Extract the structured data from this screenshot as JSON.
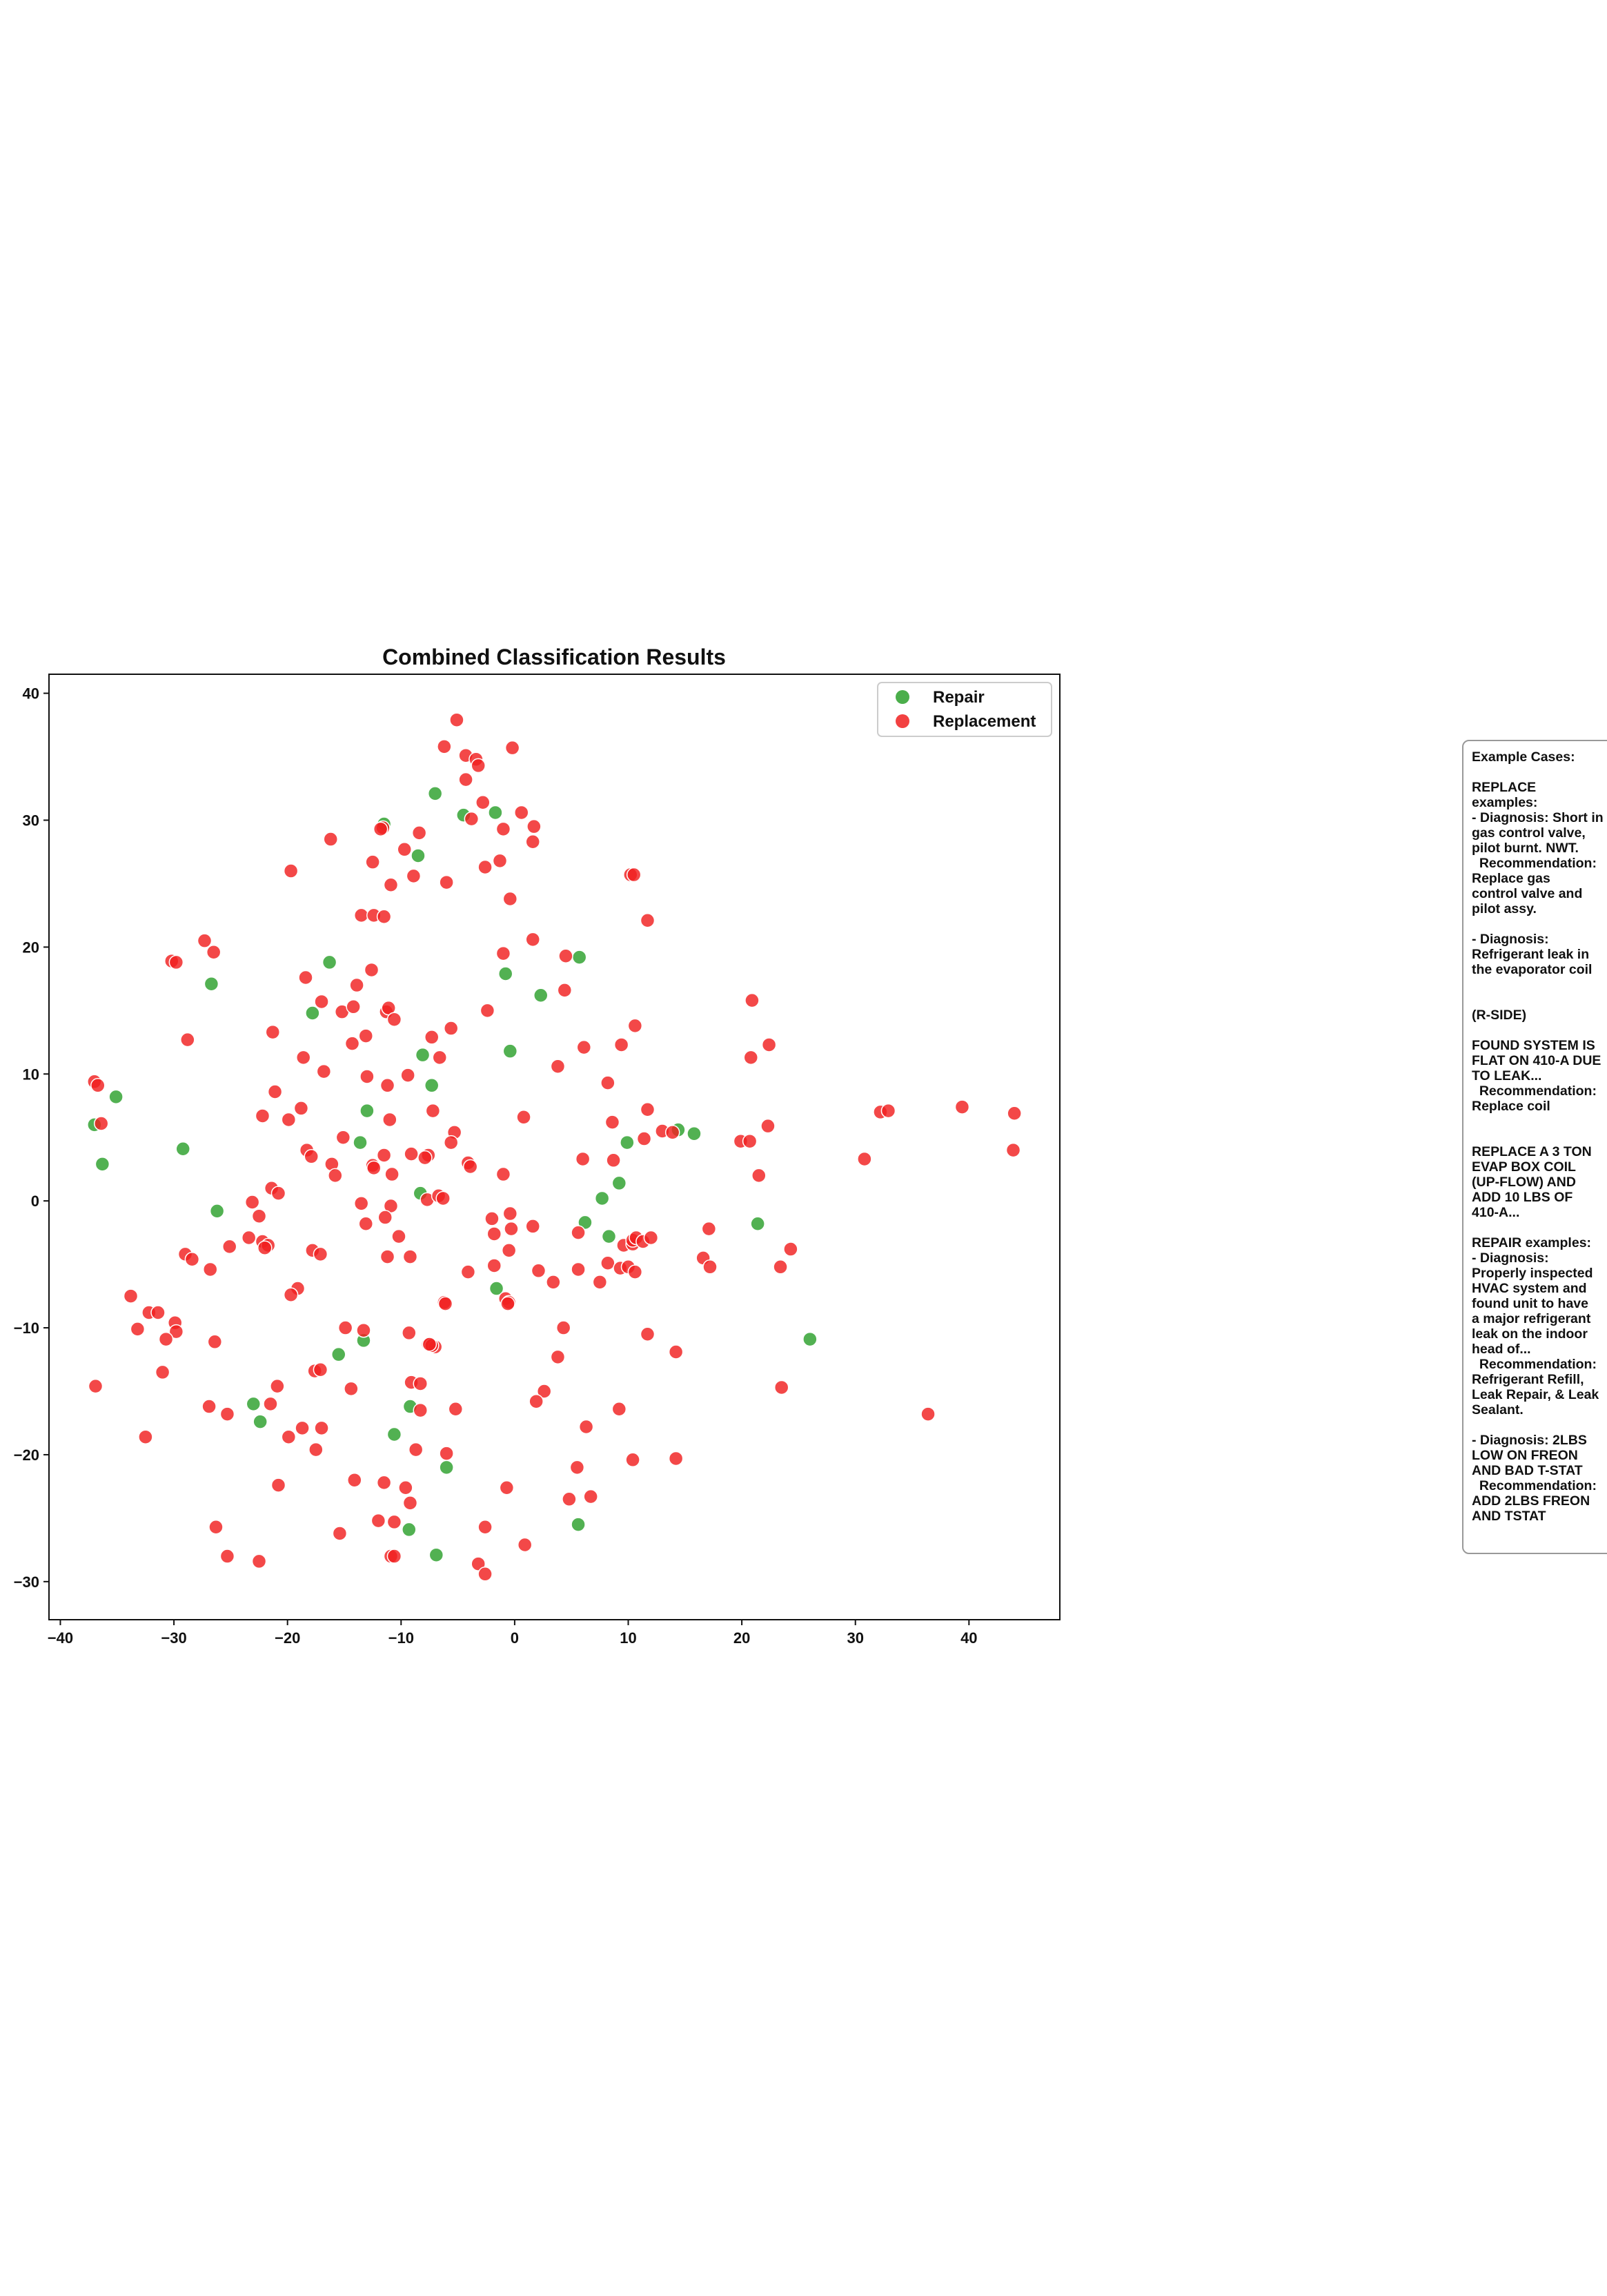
{
  "chart_data": {
    "type": "scatter",
    "title": "Combined Classification Results",
    "xlabel": "",
    "ylabel": "",
    "xlim": [
      -41,
      48
    ],
    "ylim": [
      -33,
      41.5
    ],
    "xticks": [
      -40,
      -30,
      -20,
      -10,
      0,
      10,
      20,
      30,
      40
    ],
    "yticks": [
      -30,
      -20,
      -10,
      0,
      10,
      20,
      30,
      40
    ],
    "grid": false,
    "legend_position": "top-right",
    "series": [
      {
        "name": "Repair",
        "color": "#2ca02c",
        "points": [
          [
            -11.5,
            29.7
          ],
          [
            -7,
            32.1
          ],
          [
            -4.5,
            30.4
          ],
          [
            -1.7,
            30.6
          ],
          [
            -8.5,
            27.2
          ],
          [
            -16.3,
            18.8
          ],
          [
            -26.7,
            17.1
          ],
          [
            -17.8,
            14.8
          ],
          [
            -0.8,
            17.9
          ],
          [
            2.3,
            16.2
          ],
          [
            5.7,
            19.2
          ],
          [
            -8.1,
            11.5
          ],
          [
            -0.4,
            11.8
          ],
          [
            -7.3,
            9.1
          ],
          [
            -13,
            7.1
          ],
          [
            -35.1,
            8.2
          ],
          [
            -37,
            6
          ],
          [
            -36.3,
            2.9
          ],
          [
            -29.2,
            4.1
          ],
          [
            -13.6,
            4.6
          ],
          [
            9.9,
            4.6
          ],
          [
            14.4,
            5.6
          ],
          [
            15.8,
            5.3
          ],
          [
            -8.3,
            0.6
          ],
          [
            7.7,
            0.2
          ],
          [
            9.2,
            1.4
          ],
          [
            -26.2,
            -0.8
          ],
          [
            6.2,
            -1.7
          ],
          [
            8.3,
            -2.8
          ],
          [
            21.4,
            -1.8
          ],
          [
            -1.6,
            -6.9
          ],
          [
            26,
            -10.9
          ],
          [
            -13.3,
            -11
          ],
          [
            -15.5,
            -12.1
          ],
          [
            -23,
            -16
          ],
          [
            -22.4,
            -17.4
          ],
          [
            -9.2,
            -16.2
          ],
          [
            -10.6,
            -18.4
          ],
          [
            -6,
            -21
          ],
          [
            -9.3,
            -25.9
          ],
          [
            5.6,
            -25.5
          ],
          [
            -6.9,
            -27.9
          ]
        ]
      },
      {
        "name": "Replacement",
        "color": "#f02020",
        "points": [
          [
            -5.1,
            37.9
          ],
          [
            -6.2,
            35.8
          ],
          [
            -4.3,
            35.1
          ],
          [
            -3.4,
            34.8
          ],
          [
            -3.2,
            34.3
          ],
          [
            -0.2,
            35.7
          ],
          [
            -4.3,
            33.2
          ],
          [
            -2.8,
            31.4
          ],
          [
            0.6,
            30.6
          ],
          [
            -3.8,
            30.1
          ],
          [
            -11.6,
            29.4
          ],
          [
            -11.8,
            29.3
          ],
          [
            -8.4,
            29
          ],
          [
            -1,
            29.3
          ],
          [
            1.7,
            29.5
          ],
          [
            -16.2,
            28.5
          ],
          [
            -9.7,
            27.7
          ],
          [
            1.6,
            28.3
          ],
          [
            -12.5,
            26.7
          ],
          [
            -2.6,
            26.3
          ],
          [
            -1.3,
            26.8
          ],
          [
            -19.7,
            26
          ],
          [
            -8.9,
            25.6
          ],
          [
            -10.9,
            24.9
          ],
          [
            -6,
            25.1
          ],
          [
            10.2,
            25.7
          ],
          [
            10.5,
            25.7
          ],
          [
            -0.4,
            23.8
          ],
          [
            -13.5,
            22.5
          ],
          [
            -12.4,
            22.5
          ],
          [
            -11.5,
            22.4
          ],
          [
            11.7,
            22.1
          ],
          [
            -27.3,
            20.5
          ],
          [
            1.6,
            20.6
          ],
          [
            -26.5,
            19.6
          ],
          [
            -30.2,
            18.9
          ],
          [
            -29.8,
            18.8
          ],
          [
            -1,
            19.5
          ],
          [
            4.5,
            19.3
          ],
          [
            -18.4,
            17.6
          ],
          [
            -13.9,
            17
          ],
          [
            -12.6,
            18.2
          ],
          [
            4.4,
            16.6
          ],
          [
            -17,
            15.7
          ],
          [
            -15.2,
            14.9
          ],
          [
            -14.2,
            15.3
          ],
          [
            -11.3,
            14.9
          ],
          [
            -11.1,
            15.2
          ],
          [
            -10.6,
            14.3
          ],
          [
            -2.4,
            15
          ],
          [
            20.9,
            15.8
          ],
          [
            -21.3,
            13.3
          ],
          [
            -13.1,
            13
          ],
          [
            -7.3,
            12.9
          ],
          [
            -5.6,
            13.6
          ],
          [
            -28.8,
            12.7
          ],
          [
            -14.3,
            12.4
          ],
          [
            6.1,
            12.1
          ],
          [
            9.4,
            12.3
          ],
          [
            10.6,
            13.8
          ],
          [
            22.4,
            12.3
          ],
          [
            -18.6,
            11.3
          ],
          [
            -6.6,
            11.3
          ],
          [
            20.8,
            11.3
          ],
          [
            -16.8,
            10.2
          ],
          [
            -13,
            9.8
          ],
          [
            -11.2,
            9.1
          ],
          [
            -9.4,
            9.9
          ],
          [
            3.8,
            10.6
          ],
          [
            8.2,
            9.3
          ],
          [
            -37,
            9.4
          ],
          [
            -36.7,
            9.1
          ],
          [
            -21.1,
            8.6
          ],
          [
            -18.8,
            7.3
          ],
          [
            -7.2,
            7.1
          ],
          [
            11.7,
            7.2
          ],
          [
            -36.4,
            6.1
          ],
          [
            -22.2,
            6.7
          ],
          [
            -19.9,
            6.4
          ],
          [
            -11,
            6.4
          ],
          [
            0.8,
            6.6
          ],
          [
            8.6,
            6.2
          ],
          [
            -5.3,
            5.4
          ],
          [
            11.4,
            4.9
          ],
          [
            13,
            5.5
          ],
          [
            13.9,
            5.4
          ],
          [
            22.3,
            5.9
          ],
          [
            -15.1,
            5
          ],
          [
            -5.6,
            4.6
          ],
          [
            19.9,
            4.7
          ],
          [
            20.7,
            4.7
          ],
          [
            -18.3,
            4
          ],
          [
            -17.9,
            3.5
          ],
          [
            -11.5,
            3.6
          ],
          [
            -9.1,
            3.7
          ],
          [
            -7.6,
            3.6
          ],
          [
            -7.9,
            3.4
          ],
          [
            -4.1,
            3
          ],
          [
            -3.9,
            2.7
          ],
          [
            6,
            3.3
          ],
          [
            8.7,
            3.2
          ],
          [
            -16.1,
            2.9
          ],
          [
            -12.5,
            2.8
          ],
          [
            -12.4,
            2.6
          ],
          [
            -15.8,
            2
          ],
          [
            -10.8,
            2.1
          ],
          [
            -1,
            2.1
          ],
          [
            21.5,
            2
          ],
          [
            30.8,
            3.3
          ],
          [
            32.2,
            7
          ],
          [
            32.9,
            7.1
          ],
          [
            39.4,
            7.4
          ],
          [
            44,
            6.9
          ],
          [
            43.9,
            4
          ],
          [
            -21.4,
            1
          ],
          [
            -20.8,
            0.6
          ],
          [
            -7.7,
            0.1
          ],
          [
            -6.7,
            0.4
          ],
          [
            -6.3,
            0.2
          ],
          [
            -13.5,
            -0.2
          ],
          [
            -10.9,
            -0.4
          ],
          [
            -0.4,
            -1
          ],
          [
            -23.1,
            -0.1
          ],
          [
            -22.5,
            -1.2
          ],
          [
            -11.4,
            -1.3
          ],
          [
            -2,
            -1.4
          ],
          [
            -13.1,
            -1.8
          ],
          [
            -10.2,
            -2.8
          ],
          [
            -1.8,
            -2.6
          ],
          [
            -0.3,
            -2.2
          ],
          [
            1.6,
            -2
          ],
          [
            5.6,
            -2.5
          ],
          [
            -23.4,
            -2.9
          ],
          [
            -22.2,
            -3.2
          ],
          [
            -21.7,
            -3.5
          ],
          [
            -22,
            -3.7
          ],
          [
            -25.1,
            -3.6
          ],
          [
            -17.8,
            -3.9
          ],
          [
            -17.1,
            -4.2
          ],
          [
            -29,
            -4.2
          ],
          [
            -28.4,
            -4.6
          ],
          [
            -11.2,
            -4.4
          ],
          [
            -9.2,
            -4.4
          ],
          [
            -0.5,
            -3.9
          ],
          [
            9.6,
            -3.5
          ],
          [
            10.4,
            -3.4
          ],
          [
            10.4,
            -3.1
          ],
          [
            10.7,
            -2.9
          ],
          [
            11.3,
            -3.2
          ],
          [
            12,
            -2.9
          ],
          [
            17.1,
            -2.2
          ],
          [
            24.3,
            -3.8
          ],
          [
            -26.8,
            -5.4
          ],
          [
            -1.8,
            -5.1
          ],
          [
            -4.1,
            -5.6
          ],
          [
            2.1,
            -5.5
          ],
          [
            5.6,
            -5.4
          ],
          [
            8.2,
            -4.9
          ],
          [
            9.3,
            -5.3
          ],
          [
            10,
            -5.2
          ],
          [
            10.6,
            -5.6
          ],
          [
            16.6,
            -4.5
          ],
          [
            17.2,
            -5.2
          ],
          [
            23.4,
            -5.2
          ],
          [
            3.4,
            -6.4
          ],
          [
            7.5,
            -6.4
          ],
          [
            -19.1,
            -6.9
          ],
          [
            -19.7,
            -7.4
          ],
          [
            -33.8,
            -7.5
          ],
          [
            -6.2,
            -8
          ],
          [
            -6.1,
            -8.1
          ],
          [
            -0.8,
            -7.7
          ],
          [
            -0.5,
            -8
          ],
          [
            -0.6,
            -8.1
          ],
          [
            -32.2,
            -8.8
          ],
          [
            -31.4,
            -8.8
          ],
          [
            -29.9,
            -9.6
          ],
          [
            -33.2,
            -10.1
          ],
          [
            -29.8,
            -10.3
          ],
          [
            -30.7,
            -10.9
          ],
          [
            -26.4,
            -11.1
          ],
          [
            -14.9,
            -10
          ],
          [
            -13.3,
            -10.2
          ],
          [
            -9.3,
            -10.4
          ],
          [
            4.3,
            -10
          ],
          [
            11.7,
            -10.5
          ],
          [
            -7.6,
            -11.3
          ],
          [
            -7,
            -11.5
          ],
          [
            -7.3,
            -11.4
          ],
          [
            -7.5,
            -11.3
          ],
          [
            14.2,
            -11.9
          ],
          [
            -31,
            -13.5
          ],
          [
            -17.6,
            -13.4
          ],
          [
            -17.1,
            -13.3
          ],
          [
            -9.1,
            -14.3
          ],
          [
            -8.3,
            -14.4
          ],
          [
            -36.9,
            -14.6
          ],
          [
            -20.9,
            -14.6
          ],
          [
            -14.4,
            -14.8
          ],
          [
            2.6,
            -15
          ],
          [
            3.8,
            -12.3
          ],
          [
            23.5,
            -14.7
          ],
          [
            -26.9,
            -16.2
          ],
          [
            -21.5,
            -16
          ],
          [
            -25.3,
            -16.8
          ],
          [
            -8.3,
            -16.5
          ],
          [
            -5.2,
            -16.4
          ],
          [
            1.9,
            -15.8
          ],
          [
            9.2,
            -16.4
          ],
          [
            36.4,
            -16.8
          ],
          [
            -18.7,
            -17.9
          ],
          [
            -17,
            -17.9
          ],
          [
            6.3,
            -17.8
          ],
          [
            -19.9,
            -18.6
          ],
          [
            -32.5,
            -18.6
          ],
          [
            -17.5,
            -19.6
          ],
          [
            -8.7,
            -19.6
          ],
          [
            -6,
            -19.9
          ],
          [
            5.5,
            -21
          ],
          [
            10.4,
            -20.4
          ],
          [
            14.2,
            -20.3
          ],
          [
            -20.8,
            -22.4
          ],
          [
            -14.1,
            -22
          ],
          [
            -11.5,
            -22.2
          ],
          [
            -9.6,
            -22.6
          ],
          [
            -0.7,
            -22.6
          ],
          [
            4.8,
            -23.5
          ],
          [
            6.7,
            -23.3
          ],
          [
            -9.2,
            -23.8
          ],
          [
            -12,
            -25.2
          ],
          [
            -10.6,
            -25.3
          ],
          [
            -26.3,
            -25.7
          ],
          [
            -2.6,
            -25.7
          ],
          [
            -15.4,
            -26.2
          ],
          [
            0.9,
            -27.1
          ],
          [
            -25.3,
            -28
          ],
          [
            -22.5,
            -28.4
          ],
          [
            -10.9,
            -28
          ],
          [
            -10.6,
            -28
          ],
          [
            -3.2,
            -28.6
          ],
          [
            -2.6,
            -29.4
          ]
        ]
      }
    ]
  },
  "notes": {
    "text": "Example Cases:\n\nREPLACE\nexamples:\n- Diagnosis: Short in\ngas control valve,\npilot burnt. NWT.\n  Recommendation:\nReplace gas\ncontrol valve and\npilot assy.\n\n- Diagnosis:\nRefrigerant leak in\nthe evaporator coil\n\n\n(R-SIDE)\n\nFOUND SYSTEM IS\nFLAT ON 410-A DUE\nTO LEAK...\n  Recommendation:\nReplace coil\n\n\nREPLACE A 3 TON\nEVAP BOX COIL\n(UP-FLOW) AND\nADD 10 LBS OF\n410-A...\n\nREPAIR examples:\n- Diagnosis:\nProperly inspected\nHVAC system and\nfound unit to have\na major refrigerant\nleak on the indoor\nhead of...\n  Recommendation:\nRefrigerant Refill,\nLeak Repair, & Leak\nSealant.\n\n- Diagnosis: 2LBS\nLOW ON FREON\nAND BAD T-STAT\n  Recommendation:\nADD 2LBS FREON\nAND TSTAT"
  }
}
